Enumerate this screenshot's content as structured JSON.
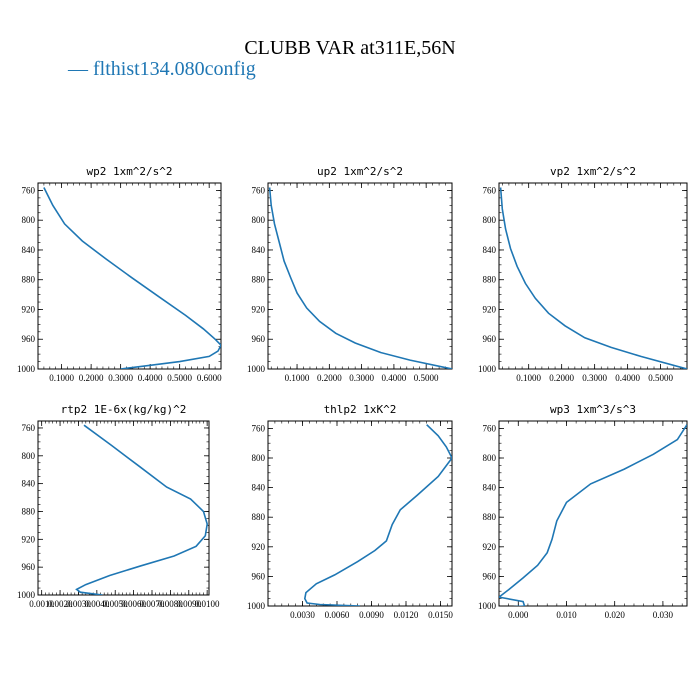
{
  "figure": {
    "title": "CLUBB VAR at311E,56N",
    "legend": "— flthist134.080config",
    "line_color": "#1f77b4"
  },
  "chart_data": [
    {
      "type": "line",
      "title": "wp2  1xm^2/s^2",
      "xlim": [
        0.02,
        0.64
      ],
      "ylim": [
        1000,
        750
      ],
      "x_ticks": [
        0.1,
        0.2,
        0.3,
        0.4,
        0.5,
        0.6
      ],
      "x_tick_labels": [
        "0.1000",
        "0.2000",
        "0.3000",
        "0.4000",
        "0.5000",
        "0.6000"
      ],
      "y_ticks": [
        760,
        800,
        840,
        880,
        920,
        960,
        1000
      ],
      "series": [
        {
          "x": [
            0.04,
            0.07,
            0.11,
            0.17,
            0.25,
            0.34,
            0.43,
            0.52,
            0.58,
            0.62,
            0.64,
            0.63,
            0.6,
            0.5,
            0.4,
            0.3
          ],
          "y": [
            756,
            780,
            805,
            828,
            852,
            878,
            903,
            928,
            946,
            960,
            968,
            976,
            983,
            990,
            995,
            1000
          ]
        }
      ]
    },
    {
      "type": "line",
      "title": "up2  1xm^2/s^2",
      "xlim": [
        0.01,
        0.58
      ],
      "ylim": [
        1000,
        750
      ],
      "x_ticks": [
        0.1,
        0.2,
        0.3,
        0.4,
        0.5
      ],
      "x_tick_labels": [
        "0.1000",
        "0.2000",
        "0.3000",
        "0.4000",
        "0.5000"
      ],
      "y_ticks": [
        760,
        800,
        840,
        880,
        920,
        960,
        1000
      ],
      "series": [
        {
          "x": [
            0.015,
            0.02,
            0.03,
            0.045,
            0.06,
            0.08,
            0.1,
            0.13,
            0.17,
            0.22,
            0.28,
            0.36,
            0.45,
            0.58
          ],
          "y": [
            756,
            780,
            805,
            830,
            855,
            877,
            898,
            918,
            936,
            952,
            965,
            978,
            988,
            1000
          ]
        }
      ]
    },
    {
      "type": "line",
      "title": "vp2  1xm^2/s^2",
      "xlim": [
        0.01,
        0.58
      ],
      "ylim": [
        1000,
        750
      ],
      "x_ticks": [
        0.1,
        0.2,
        0.3,
        0.4,
        0.5
      ],
      "x_tick_labels": [
        "0.1000",
        "0.2000",
        "0.3000",
        "0.4000",
        "0.5000"
      ],
      "y_ticks": [
        760,
        800,
        840,
        880,
        920,
        960,
        1000
      ],
      "series": [
        {
          "x": [
            0.015,
            0.02,
            0.03,
            0.045,
            0.065,
            0.09,
            0.12,
            0.16,
            0.21,
            0.27,
            0.35,
            0.44,
            0.58
          ],
          "y": [
            756,
            785,
            812,
            838,
            862,
            885,
            905,
            925,
            942,
            958,
            971,
            983,
            1000
          ]
        }
      ]
    },
    {
      "type": "line",
      "title": "rtp2  1E-6x(kg/kg)^2",
      "xlim": [
        0.0008,
        0.0101
      ],
      "ylim": [
        1000,
        750
      ],
      "x_ticks": [
        0.001,
        0.002,
        0.003,
        0.004,
        0.005,
        0.006,
        0.007,
        0.008,
        0.009,
        0.01
      ],
      "x_tick_labels": [
        "0.0010",
        "0.0020",
        "0.0030",
        "0.0040",
        "0.0050",
        "0.0060",
        "0.0070",
        "0.0080",
        "0.0090",
        "0.0100"
      ],
      "y_ticks": [
        760,
        800,
        840,
        880,
        920,
        960,
        1000
      ],
      "series": [
        {
          "x": [
            0.0033,
            0.0048,
            0.0063,
            0.0078,
            0.0091,
            0.0098,
            0.01,
            0.0099,
            0.0094,
            0.0082,
            0.0064,
            0.0047,
            0.0034,
            0.0029,
            0.0031,
            0.0043
          ],
          "y": [
            756,
            785,
            815,
            845,
            862,
            880,
            898,
            915,
            930,
            944,
            958,
            972,
            985,
            992,
            996,
            1000
          ]
        }
      ]
    },
    {
      "type": "line",
      "title": "thlp2  1xK^2",
      "xlim": [
        0.0,
        0.016
      ],
      "ylim": [
        1000,
        750
      ],
      "x_ticks": [
        0.003,
        0.006,
        0.009,
        0.012,
        0.015
      ],
      "x_tick_labels": [
        "0.0030",
        "0.0060",
        "0.0090",
        "0.0120",
        "0.0150"
      ],
      "y_ticks": [
        760,
        800,
        840,
        880,
        920,
        960,
        1000
      ],
      "series": [
        {
          "x": [
            0.0138,
            0.0148,
            0.0155,
            0.016,
            0.0148,
            0.013,
            0.0115,
            0.0108,
            0.0103,
            0.0093,
            0.0078,
            0.0058,
            0.0042,
            0.0033,
            0.0032,
            0.0034,
            0.0045,
            0.008
          ],
          "y": [
            755,
            770,
            785,
            800,
            825,
            850,
            870,
            890,
            912,
            925,
            940,
            958,
            970,
            982,
            990,
            996,
            998,
            1000
          ]
        }
      ]
    },
    {
      "type": "line",
      "title": "wp3  1xm^3/s^3",
      "xlim": [
        -0.004,
        0.035
      ],
      "ylim": [
        1000,
        750
      ],
      "x_ticks": [
        0.0,
        0.01,
        0.02,
        0.03
      ],
      "x_tick_labels": [
        "0.000",
        "0.010",
        "0.020",
        "0.030"
      ],
      "y_ticks": [
        760,
        800,
        840,
        880,
        920,
        960,
        1000
      ],
      "series": [
        {
          "x": [
            0.035,
            0.033,
            0.028,
            0.022,
            0.015,
            0.01,
            0.008,
            0.007,
            0.006,
            0.004,
            0.001,
            -0.002,
            -0.004,
            0.001,
            0.0013,
            -0.001
          ],
          "y": [
            755,
            775,
            795,
            815,
            835,
            860,
            885,
            910,
            928,
            945,
            962,
            978,
            988,
            994,
            1000,
            1001
          ]
        }
      ]
    }
  ]
}
